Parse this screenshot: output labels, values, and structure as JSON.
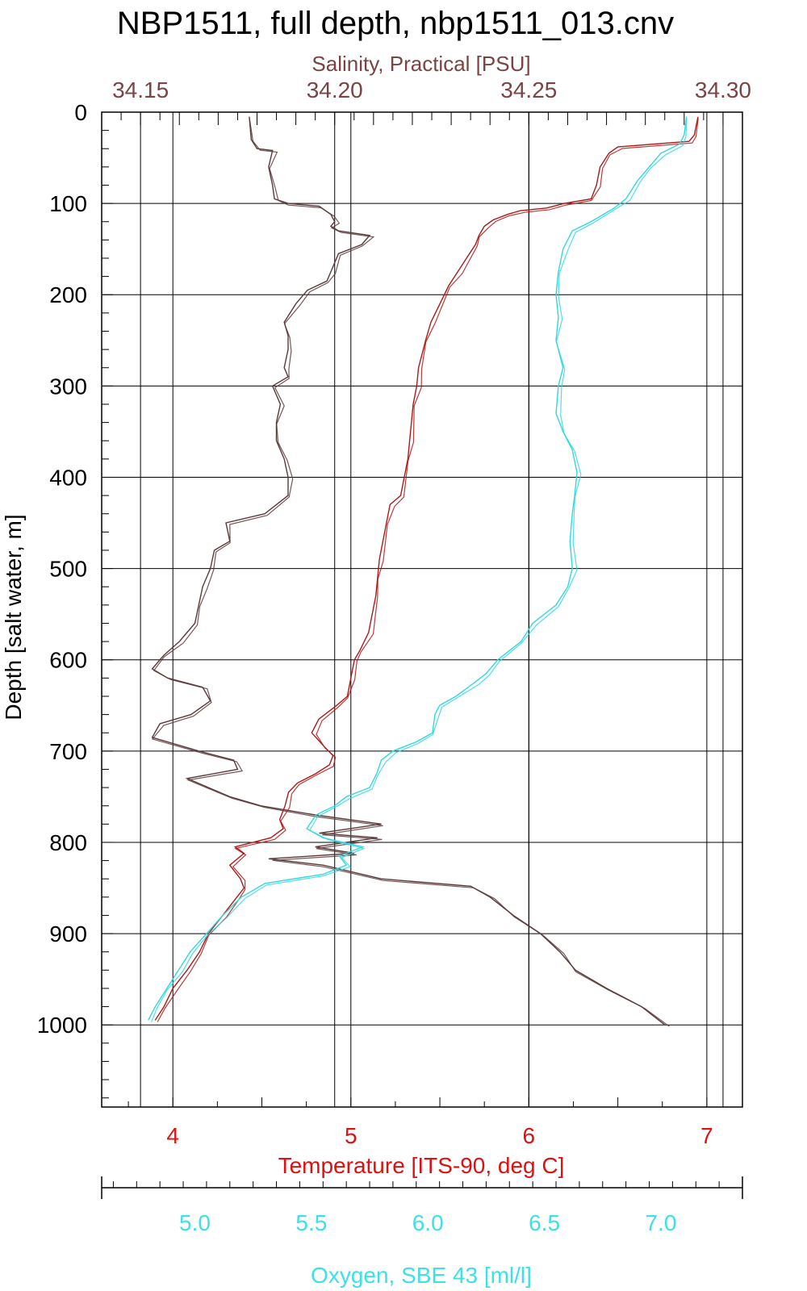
{
  "title": "NBP1511, full depth, nbp1511_013.cnv",
  "chart_data": {
    "type": "line",
    "title": "NBP1511, full depth, nbp1511_013.cnv",
    "grid": true,
    "y_axis": {
      "label": "Depth [salt water, m]",
      "range": [
        0,
        1090
      ],
      "inverted": true,
      "ticks": [
        "0",
        "100",
        "200",
        "300",
        "400",
        "500",
        "600",
        "700",
        "800",
        "900",
        "1000"
      ]
    },
    "x_axes": [
      {
        "id": "salinity",
        "label": "Salinity, Practical [PSU]",
        "position": "top",
        "color": "#7a4444",
        "range": [
          34.14,
          34.305
        ],
        "ticks": [
          "34.15",
          "34.20",
          "34.25",
          "34.30"
        ]
      },
      {
        "id": "temperature",
        "label": "Temperature [ITS-90, deg C]",
        "position": "bottom",
        "color": "#e01010",
        "range": [
          3.6,
          7.2
        ],
        "ticks": [
          "4",
          "5",
          "6",
          "7"
        ]
      },
      {
        "id": "oxygen",
        "label": "Oxygen, SBE 43 [ml/l]",
        "position": "bottom-second",
        "color": "#3ee0e8",
        "range": [
          4.6,
          7.35
        ],
        "ticks": [
          "5.0",
          "5.5",
          "6.0",
          "6.5",
          "7.0"
        ]
      }
    ],
    "series": [
      {
        "axis": "salinity",
        "color": "#5a3a3a",
        "points": [
          [
            34.178,
            5
          ],
          [
            34.1785,
            30
          ],
          [
            34.18,
            40
          ],
          [
            34.184,
            42
          ],
          [
            34.183,
            60
          ],
          [
            34.184,
            80
          ],
          [
            34.1845,
            95
          ],
          [
            34.188,
            100
          ],
          [
            34.196,
            103
          ],
          [
            34.199,
            112
          ],
          [
            34.2,
            120
          ],
          [
            34.199,
            125
          ],
          [
            34.201,
            130
          ],
          [
            34.209,
            135
          ],
          [
            34.207,
            145
          ],
          [
            34.201,
            155
          ],
          [
            34.2,
            165
          ],
          [
            34.199,
            175
          ],
          [
            34.198,
            185
          ],
          [
            34.193,
            195
          ],
          [
            34.19,
            210
          ],
          [
            34.187,
            230
          ],
          [
            34.188,
            245
          ],
          [
            34.188,
            260
          ],
          [
            34.187,
            280
          ],
          [
            34.188,
            290
          ],
          [
            34.184,
            300
          ],
          [
            34.186,
            320
          ],
          [
            34.185,
            340
          ],
          [
            34.185,
            360
          ],
          [
            34.187,
            380
          ],
          [
            34.188,
            400
          ],
          [
            34.188,
            420
          ],
          [
            34.182,
            440
          ],
          [
            34.172,
            450
          ],
          [
            34.173,
            470
          ],
          [
            34.169,
            480
          ],
          [
            34.168,
            500
          ],
          [
            34.166,
            520
          ],
          [
            34.165,
            540
          ],
          [
            34.164,
            560
          ],
          [
            34.16,
            580
          ],
          [
            34.156,
            595
          ],
          [
            34.153,
            610
          ],
          [
            34.157,
            620
          ],
          [
            34.166,
            630
          ],
          [
            34.168,
            645
          ],
          [
            34.163,
            660
          ],
          [
            34.155,
            670
          ],
          [
            34.153,
            685
          ],
          [
            34.165,
            700
          ],
          [
            34.174,
            710
          ],
          [
            34.175,
            720
          ],
          [
            34.162,
            730
          ],
          [
            34.173,
            750
          ],
          [
            34.181,
            760
          ],
          [
            34.195,
            770
          ],
          [
            34.212,
            780
          ],
          [
            34.196,
            790
          ],
          [
            34.211,
            795
          ],
          [
            34.195,
            805
          ],
          [
            34.205,
            812
          ],
          [
            34.183,
            818
          ],
          [
            34.197,
            825
          ],
          [
            34.212,
            840
          ],
          [
            34.235,
            848
          ],
          [
            34.24,
            860
          ],
          [
            34.246,
            880
          ],
          [
            34.253,
            900
          ],
          [
            34.258,
            920
          ],
          [
            34.262,
            940
          ],
          [
            34.27,
            960
          ],
          [
            34.279,
            980
          ],
          [
            34.285,
            1000
          ]
        ]
      },
      {
        "axis": "temperature",
        "color": "#b01818",
        "points": [
          [
            6.95,
            5
          ],
          [
            6.93,
            25
          ],
          [
            6.9,
            32
          ],
          [
            6.5,
            38
          ],
          [
            6.45,
            45
          ],
          [
            6.4,
            60
          ],
          [
            6.38,
            80
          ],
          [
            6.35,
            95
          ],
          [
            6.2,
            100
          ],
          [
            6.1,
            105
          ],
          [
            5.95,
            108
          ],
          [
            5.88,
            112
          ],
          [
            5.8,
            118
          ],
          [
            5.75,
            125
          ],
          [
            5.72,
            135
          ],
          [
            5.7,
            145
          ],
          [
            5.65,
            160
          ],
          [
            5.6,
            175
          ],
          [
            5.55,
            190
          ],
          [
            5.5,
            210
          ],
          [
            5.45,
            230
          ],
          [
            5.42,
            250
          ],
          [
            5.4,
            265
          ],
          [
            5.38,
            280
          ],
          [
            5.37,
            300
          ],
          [
            5.35,
            320
          ],
          [
            5.34,
            340
          ],
          [
            5.33,
            360
          ],
          [
            5.32,
            380
          ],
          [
            5.3,
            400
          ],
          [
            5.28,
            420
          ],
          [
            5.22,
            430
          ],
          [
            5.2,
            450
          ],
          [
            5.18,
            470
          ],
          [
            5.16,
            490
          ],
          [
            5.15,
            510
          ],
          [
            5.14,
            530
          ],
          [
            5.12,
            550
          ],
          [
            5.1,
            570
          ],
          [
            5.05,
            590
          ],
          [
            5.02,
            600
          ],
          [
            5.0,
            620
          ],
          [
            4.98,
            640
          ],
          [
            4.92,
            650
          ],
          [
            4.82,
            665
          ],
          [
            4.78,
            680
          ],
          [
            4.85,
            695
          ],
          [
            4.9,
            705
          ],
          [
            4.88,
            715
          ],
          [
            4.8,
            725
          ],
          [
            4.7,
            735
          ],
          [
            4.65,
            745
          ],
          [
            4.63,
            760
          ],
          [
            4.6,
            775
          ],
          [
            4.62,
            785
          ],
          [
            4.55,
            795
          ],
          [
            4.35,
            805
          ],
          [
            4.4,
            812
          ],
          [
            4.32,
            825
          ],
          [
            4.38,
            840
          ],
          [
            4.4,
            850
          ],
          [
            4.36,
            860
          ],
          [
            4.28,
            880
          ],
          [
            4.2,
            900
          ],
          [
            4.15,
            920
          ],
          [
            4.08,
            940
          ],
          [
            4.0,
            960
          ],
          [
            3.95,
            980
          ],
          [
            3.9,
            995
          ]
        ]
      },
      {
        "axis": "oxygen",
        "color": "#30d8e0",
        "points": [
          [
            7.11,
            5
          ],
          [
            7.1,
            25
          ],
          [
            7.08,
            35
          ],
          [
            7.0,
            45
          ],
          [
            6.95,
            60
          ],
          [
            6.9,
            75
          ],
          [
            6.85,
            95
          ],
          [
            6.8,
            105
          ],
          [
            6.7,
            120
          ],
          [
            6.62,
            130
          ],
          [
            6.58,
            150
          ],
          [
            6.56,
            175
          ],
          [
            6.55,
            200
          ],
          [
            6.56,
            225
          ],
          [
            6.55,
            250
          ],
          [
            6.58,
            280
          ],
          [
            6.56,
            300
          ],
          [
            6.55,
            330
          ],
          [
            6.58,
            350
          ],
          [
            6.62,
            370
          ],
          [
            6.64,
            395
          ],
          [
            6.63,
            420
          ],
          [
            6.62,
            440
          ],
          [
            6.61,
            470
          ],
          [
            6.62,
            500
          ],
          [
            6.6,
            520
          ],
          [
            6.55,
            540
          ],
          [
            6.45,
            560
          ],
          [
            6.4,
            580
          ],
          [
            6.3,
            600
          ],
          [
            6.25,
            615
          ],
          [
            6.2,
            625
          ],
          [
            6.12,
            640
          ],
          [
            6.05,
            650
          ],
          [
            6.03,
            660
          ],
          [
            6.02,
            680
          ],
          [
            5.95,
            690
          ],
          [
            5.85,
            700
          ],
          [
            5.8,
            710
          ],
          [
            5.78,
            725
          ],
          [
            5.75,
            740
          ],
          [
            5.65,
            750
          ],
          [
            5.6,
            760
          ],
          [
            5.52,
            770
          ],
          [
            5.48,
            785
          ],
          [
            5.55,
            795
          ],
          [
            5.72,
            805
          ],
          [
            5.62,
            815
          ],
          [
            5.65,
            825
          ],
          [
            5.55,
            835
          ],
          [
            5.3,
            845
          ],
          [
            5.2,
            860
          ],
          [
            5.12,
            880
          ],
          [
            5.05,
            900
          ],
          [
            4.98,
            920
          ],
          [
            4.93,
            940
          ],
          [
            4.88,
            960
          ],
          [
            4.83,
            980
          ],
          [
            4.8,
            995
          ]
        ]
      }
    ]
  }
}
